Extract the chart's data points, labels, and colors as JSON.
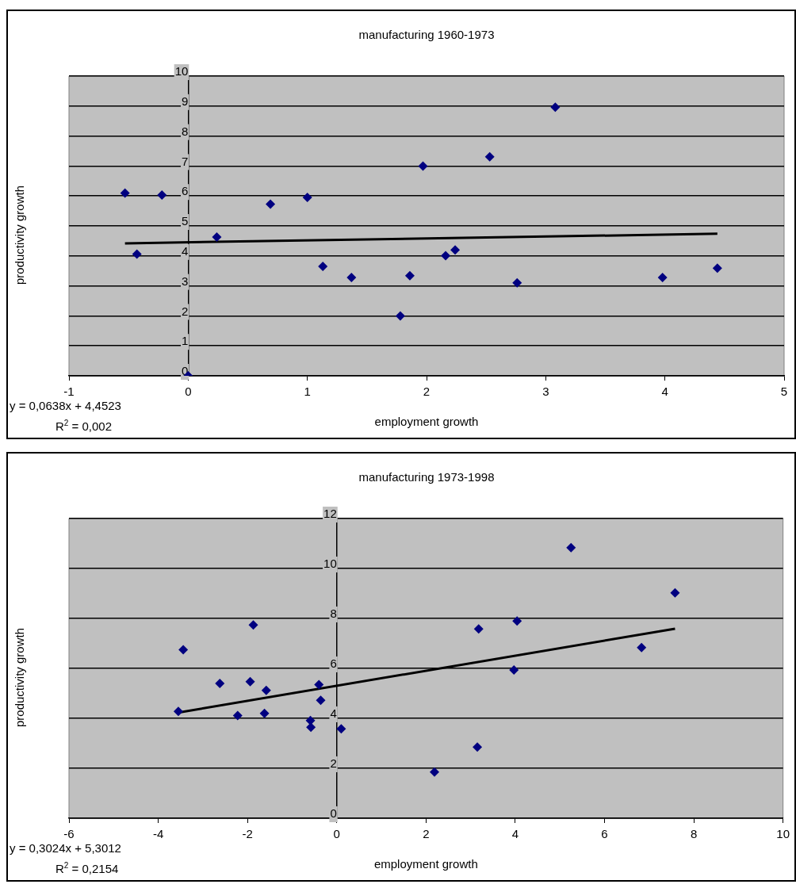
{
  "chart_data": [
    {
      "type": "scatter",
      "title": "manufacturing 1960-1973",
      "xlabel": "employment growth",
      "ylabel": "productivity growth",
      "annotations": [
        "y = 0,0638x + 4,4523",
        "R$^{2}$ = 0,002"
      ],
      "xlim": [
        -1,
        5
      ],
      "xticks": [
        -1,
        0,
        1,
        2,
        3,
        4,
        5
      ],
      "ylim": [
        0,
        10
      ],
      "yticks": [
        0,
        1,
        2,
        3,
        4,
        5,
        6,
        7,
        8,
        9,
        10
      ],
      "grid": "y",
      "legend": false,
      "series": [
        {
          "type": "scatter",
          "color": "#000080",
          "marker": "diamond",
          "x": [
            -0.53,
            -0.43,
            -0.22,
            0,
            0.24,
            0.69,
            1.0,
            1.13,
            1.37,
            1.78,
            1.86,
            1.97,
            2.16,
            2.24,
            2.53,
            2.76,
            3.08,
            3.98,
            4.44
          ],
          "values": [
            6.1,
            4.06,
            6.03,
            0,
            4.63,
            5.73,
            5.95,
            3.65,
            3.28,
            2.0,
            3.34,
            7.0,
            4.01,
            4.2,
            7.31,
            3.1,
            8.96,
            3.28,
            3.59
          ]
        },
        {
          "type": "line",
          "color": "#000000",
          "marker": "none",
          "x": [
            -0.53,
            4.44
          ],
          "values": [
            4.42,
            4.74
          ]
        }
      ]
    },
    {
      "type": "scatter",
      "title": "manufacturing 1973-1998",
      "xlabel": "employment growth",
      "ylabel": "productivity growth",
      "annotations": [
        "y = 0,3024x + 5,3012",
        "R$^{2}$ = 0,2154"
      ],
      "xlim": [
        -6,
        10
      ],
      "xticks": [
        -6,
        -4,
        -2,
        0,
        2,
        4,
        6,
        8,
        10
      ],
      "ylim": [
        0,
        12
      ],
      "yticks": [
        0,
        2,
        4,
        6,
        8,
        10,
        12
      ],
      "grid": "y",
      "legend": false,
      "series": [
        {
          "type": "scatter",
          "color": "#000080",
          "marker": "diamond",
          "x": [
            -3.55,
            -3.44,
            -2.62,
            -2.22,
            -1.94,
            -1.87,
            -1.62,
            -1.58,
            -0.59,
            -0.58,
            -0.4,
            -0.36,
            0.1,
            2.19,
            3.15,
            3.18,
            3.97,
            4.04,
            5.25,
            6.83,
            7.58
          ],
          "values": [
            4.28,
            6.75,
            5.4,
            4.11,
            5.47,
            7.74,
            4.2,
            5.12,
            3.91,
            3.64,
            5.35,
            4.72,
            3.58,
            1.85,
            2.85,
            7.58,
            5.94,
            7.9,
            10.83,
            6.83,
            9.02
          ]
        },
        {
          "type": "line",
          "color": "#000000",
          "marker": "none",
          "x": [
            -3.55,
            7.58
          ],
          "values": [
            4.23,
            7.59
          ]
        }
      ]
    }
  ]
}
